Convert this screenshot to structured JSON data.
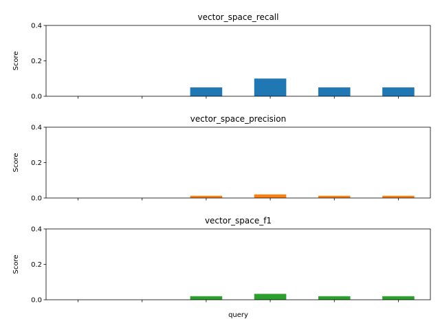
{
  "chart_data": [
    {
      "type": "bar",
      "title": "vector_space_recall",
      "ylabel": "Score",
      "xlabel": "",
      "ylim": [
        0,
        0.4
      ],
      "yticks": [
        "0.0",
        "0.2",
        "0.4"
      ],
      "color": "#1f77b4",
      "values": [
        0,
        0,
        0.05,
        0.1,
        0.05,
        0.05
      ],
      "grid": false,
      "legend": "none"
    },
    {
      "type": "bar",
      "title": "vector_space_precision",
      "ylabel": "Score",
      "xlabel": "",
      "ylim": [
        0,
        0.4
      ],
      "yticks": [
        "0.0",
        "0.2",
        "0.4"
      ],
      "color": "#ff7f0e",
      "values": [
        0,
        0,
        0.0125,
        0.02,
        0.0125,
        0.0125
      ],
      "grid": false,
      "legend": "none"
    },
    {
      "type": "bar",
      "title": "vector_space_f1",
      "ylabel": "Score",
      "xlabel": "query",
      "ylim": [
        0,
        0.4
      ],
      "yticks": [
        "0.0",
        "0.2",
        "0.4"
      ],
      "color": "#2ca02c",
      "values": [
        0,
        0,
        0.02,
        0.0333,
        0.02,
        0.02
      ],
      "grid": false,
      "legend": "none"
    }
  ]
}
